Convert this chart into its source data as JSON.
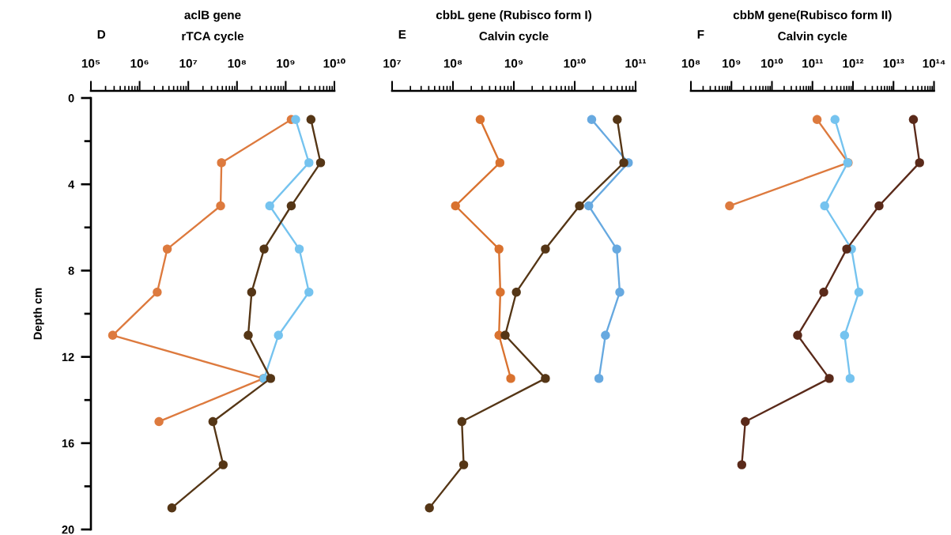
{
  "chart_data": [
    {
      "type": "line",
      "title": "aclB gene",
      "subtitle": "rTCA cycle",
      "ylabel": "Depth cm",
      "annotations": [
        "D"
      ],
      "log": "x",
      "marker": "circle",
      "line_style": "solid",
      "xlim": [
        100000,
        10000000000
      ],
      "xticks": [
        {
          "value": 100000,
          "label": "10⁵"
        },
        {
          "value": 1000000,
          "label": "10⁶"
        },
        {
          "value": 10000000,
          "label": "10⁷"
        },
        {
          "value": 100000000,
          "label": "10⁸"
        },
        {
          "value": 1000000000,
          "label": "10⁹"
        },
        {
          "value": 10000000000,
          "label": "10¹⁰"
        }
      ],
      "ylim": [
        20,
        0
      ],
      "yticks": [
        0,
        {
          "value": 2,
          "label": null
        },
        4,
        {
          "value": 6,
          "label": null
        },
        8,
        {
          "value": 10,
          "label": null
        },
        12,
        {
          "value": 14,
          "label": null
        },
        16,
        {
          "value": 18,
          "label": null
        },
        20
      ],
      "series": [
        {
          "color": "#dd7a3e",
          "x": [
            1300000000.0,
            48000000.0,
            46000000.0,
            3700000.0,
            2300000.0,
            280000.0,
            350000000.0,
            2500000.0
          ],
          "values": [
            1,
            3,
            5,
            7,
            9,
            11,
            13,
            15
          ]
        },
        {
          "color": "#75c3ef",
          "x": [
            1600000000.0,
            3000000000.0,
            470000000.0,
            1900000000.0,
            3000000000.0,
            710000000.0,
            360000000.0
          ],
          "values": [
            1,
            3,
            5,
            7,
            9,
            11,
            13
          ]
        },
        {
          "color": "#553616",
          "x": [
            3300000000.0,
            5200000000.0,
            1300000000.0,
            360000000.0,
            200000000.0,
            170000000.0,
            490000000.0,
            32000000.0,
            52000000.0,
            4600000.0
          ],
          "values": [
            1,
            3,
            5,
            7,
            9,
            11,
            13,
            15,
            17,
            19
          ]
        }
      ]
    },
    {
      "type": "line",
      "title": "cbbL gene (Rubisco form I)",
      "subtitle": "Calvin cycle",
      "annotations": [
        "E"
      ],
      "log": "x",
      "marker": "circle",
      "line_style": "solid",
      "tick_labels": "x",
      "xlim": [
        10000000,
        100000000000
      ],
      "xticks": [
        {
          "value": 10000000,
          "label": "10⁷"
        },
        {
          "value": 100000000,
          "label": "10⁸"
        },
        {
          "value": 1000000000,
          "label": "10⁹"
        },
        {
          "value": 10000000000,
          "label": "10¹⁰"
        },
        {
          "value": 100000000000,
          "label": "10¹¹"
        }
      ],
      "ylim": [
        20,
        0
      ],
      "series": [
        {
          "color": "#d9722f",
          "x": [
            280000000.0,
            590000000.0,
            110000000.0,
            570000000.0,
            600000000.0,
            570000000.0,
            890000000.0
          ],
          "values": [
            1,
            3,
            5,
            7,
            9,
            11,
            13
          ]
        },
        {
          "color": "#67a9e0",
          "x": [
            19000000000.0,
            76000000000.0,
            17000000000.0,
            49000000000.0,
            55000000000.0,
            32000000000.0,
            25000000000.0
          ],
          "values": [
            1,
            3,
            5,
            7,
            9,
            11,
            13
          ]
        },
        {
          "color": "#553616",
          "x": [
            50000000000.0,
            64000000000.0,
            12000000000.0,
            3300000000.0,
            1100000000.0,
            720000000.0,
            3300000000.0,
            140000000.0,
            150000000.0,
            41000000.0
          ],
          "values": [
            1,
            3,
            5,
            7,
            9,
            11,
            13,
            15,
            17,
            19
          ]
        }
      ]
    },
    {
      "type": "line",
      "title": "cbbM gene(Rubisco form II)",
      "subtitle": "Calvin cycle",
      "annotations": [
        "F"
      ],
      "log": "x",
      "marker": "circle",
      "line_style": "solid",
      "tick_labels": "x",
      "xlim": [
        100000000,
        100000000000000
      ],
      "xticks": [
        {
          "value": 100000000,
          "label": "10⁸"
        },
        {
          "value": 1000000000,
          "label": "10⁹"
        },
        {
          "value": 10000000000,
          "label": "10¹⁰"
        },
        {
          "value": 100000000000,
          "label": "10¹¹"
        },
        {
          "value": 1000000000000,
          "label": "10¹²"
        },
        {
          "value": 10000000000000,
          "label": "10¹³"
        },
        {
          "value": 100000000000000,
          "label": "10¹⁴"
        }
      ],
      "ylim": [
        20,
        0
      ],
      "series": [
        {
          "color": "#dd7a3e",
          "x": [
            130000000000.0,
            760000000000.0,
            900000000.0
          ],
          "values": [
            1,
            3,
            5
          ]
        },
        {
          "color": "#75c3ef",
          "x": [
            360000000000.0,
            740000000000.0,
            200000000000.0,
            920000000000.0,
            1400000000000.0,
            620000000000.0,
            850000000000.0
          ],
          "values": [
            1,
            3,
            5,
            7,
            9,
            11,
            13
          ]
        },
        {
          "color": "#5a2a1a",
          "x": [
            31000000000000.0,
            44000000000000.0,
            4400000000000.0,
            700000000000.0,
            190000000000.0,
            43000000000.0,
            260000000000.0,
            2200000000.0,
            1800000000.0
          ],
          "values": [
            1,
            3,
            5,
            7,
            9,
            11,
            13,
            15,
            17
          ]
        }
      ]
    }
  ]
}
